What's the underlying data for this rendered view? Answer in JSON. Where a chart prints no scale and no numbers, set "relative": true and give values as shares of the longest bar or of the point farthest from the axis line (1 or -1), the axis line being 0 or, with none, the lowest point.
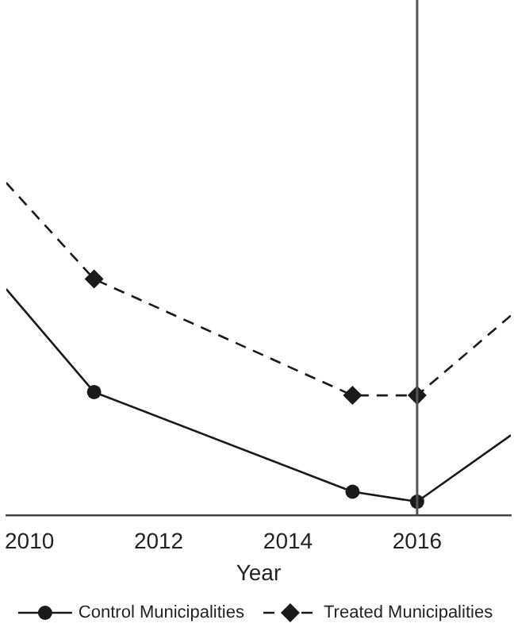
{
  "chart_data": {
    "type": "line",
    "xlabel": "Year",
    "relative": true,
    "xlim": [
      2009.64,
      2017.45
    ],
    "xticks": [
      2010,
      2012,
      2014,
      2016
    ],
    "grid": false,
    "legend": "bottom",
    "series": [
      {
        "name": "Control Municipalities",
        "color": "#1a1a1a",
        "marker": "circle",
        "line_style": "solid",
        "x": [
          2009.64,
          2011,
          2015,
          2016,
          2017.45
        ],
        "values": [
          0.68,
          0.37,
          0.07,
          0.04,
          0.24
        ]
      },
      {
        "name": "Treated Municipalities",
        "color": "#1a1a1a",
        "marker": "diamond",
        "line_style": "dashed",
        "x": [
          2009.64,
          2011,
          2015,
          2016,
          2017.45
        ],
        "values": [
          1,
          0.71,
          0.36,
          0.36,
          0.6
        ]
      }
    ],
    "ref_lines": [
      {
        "axis": "x",
        "value": 2016,
        "color": "#555555"
      }
    ]
  }
}
